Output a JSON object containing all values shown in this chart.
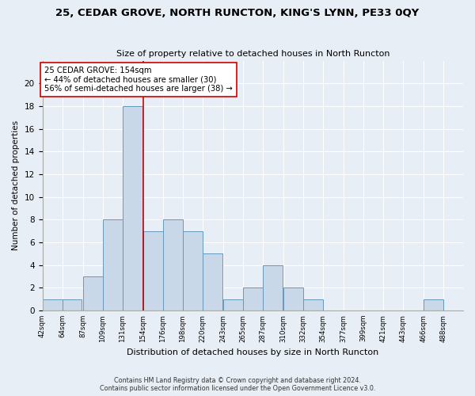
{
  "title": "25, CEDAR GROVE, NORTH RUNCTON, KING'S LYNN, PE33 0QY",
  "subtitle": "Size of property relative to detached houses in North Runcton",
  "xlabel": "Distribution of detached houses by size in North Runcton",
  "ylabel": "Number of detached properties",
  "bins_left": [
    42,
    64,
    87,
    109,
    131,
    154,
    176,
    198,
    220,
    243,
    265,
    287,
    310,
    332,
    354,
    377,
    399,
    421,
    443,
    466
  ],
  "bin_width": 22,
  "counts": [
    1,
    1,
    3,
    8,
    18,
    7,
    8,
    7,
    5,
    1,
    2,
    4,
    2,
    1,
    0,
    0,
    0,
    0,
    0,
    1
  ],
  "bar_color": "#c8d8e8",
  "bar_edge_color": "#6699bb",
  "reference_line_x": 154,
  "reference_line_color": "#cc0000",
  "annotation_text": "25 CEDAR GROVE: 154sqm\n← 44% of detached houses are smaller (30)\n56% of semi-detached houses are larger (38) →",
  "annotation_box_color": "#ffffff",
  "annotation_box_edge": "#cc0000",
  "ylim": [
    0,
    22
  ],
  "yticks": [
    0,
    2,
    4,
    6,
    8,
    10,
    12,
    14,
    16,
    18,
    20
  ],
  "footer_line1": "Contains HM Land Registry data © Crown copyright and database right 2024.",
  "footer_line2": "Contains public sector information licensed under the Open Government Licence v3.0.",
  "background_color": "#e8eef5",
  "plot_background": "#e8eef5",
  "tick_labels": [
    "42sqm",
    "64sqm",
    "87sqm",
    "109sqm",
    "131sqm",
    "154sqm",
    "176sqm",
    "198sqm",
    "220sqm",
    "243sqm",
    "265sqm",
    "287sqm",
    "310sqm",
    "332sqm",
    "354sqm",
    "377sqm",
    "399sqm",
    "421sqm",
    "443sqm",
    "466sqm",
    "488sqm"
  ],
  "xlim_left": 42,
  "xlim_right": 488
}
